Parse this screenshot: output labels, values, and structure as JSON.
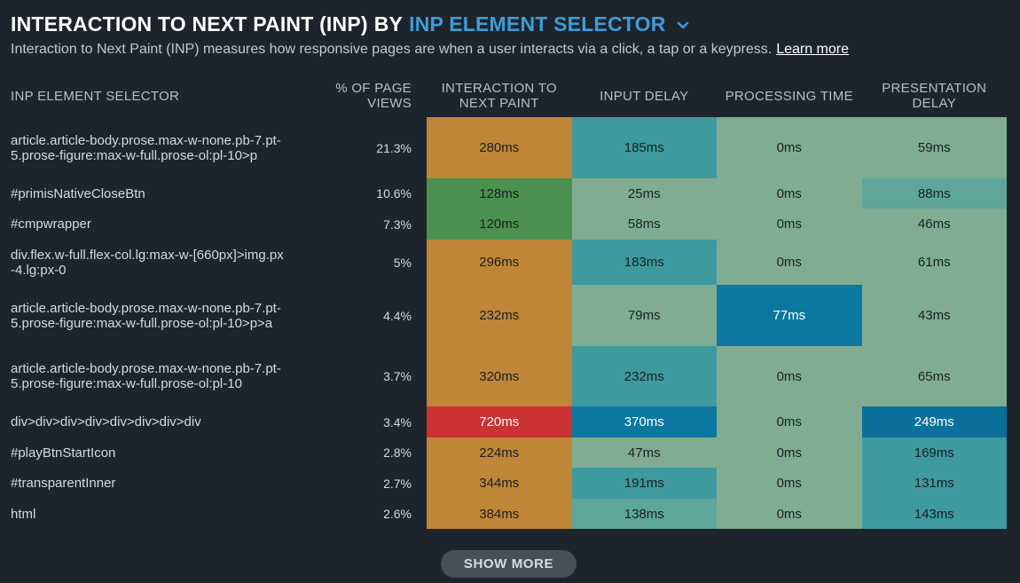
{
  "header": {
    "title_prefix": "INTERACTION TO NEXT PAINT (INP)",
    "title_by": "BY",
    "dimension_selector": "INP ELEMENT SELECTOR",
    "dropdown_icon": "chevron-down-icon",
    "description": "Interaction to Next Paint (INP) measures how responsive pages are when a user interacts via a click, a tap or a keypress.",
    "learn_more": "Learn more"
  },
  "table": {
    "columns": [
      "INP ELEMENT SELECTOR",
      "% OF PAGE VIEWS",
      "INTERACTION TO NEXT PAINT",
      "INPUT DELAY",
      "PROCESSING TIME",
      "PRESENTATION DELAY"
    ],
    "rows": [
      {
        "selector": "article.article-body.prose.max-w-none.pb-7.pt-5.prose-figure:max-w-full.prose-ol:pl-10>p",
        "pct": "21.3%",
        "inp": "280ms",
        "input_delay": "185ms",
        "processing": "0ms",
        "presentation": "59ms"
      },
      {
        "selector": "#primisNativeCloseBtn",
        "pct": "10.6%",
        "inp": "128ms",
        "input_delay": "25ms",
        "processing": "0ms",
        "presentation": "88ms"
      },
      {
        "selector": "#cmpwrapper",
        "pct": "7.3%",
        "inp": "120ms",
        "input_delay": "58ms",
        "processing": "0ms",
        "presentation": "46ms"
      },
      {
        "selector": "div.flex.w-full.flex-col.lg:max-w-[660px]>img.px-4.lg:px-0",
        "pct": "5%",
        "inp": "296ms",
        "input_delay": "183ms",
        "processing": "0ms",
        "presentation": "61ms"
      },
      {
        "selector": "article.article-body.prose.max-w-none.pb-7.pt-5.prose-figure:max-w-full.prose-ol:pl-10>p>a",
        "pct": "4.4%",
        "inp": "232ms",
        "input_delay": "79ms",
        "processing": "77ms",
        "presentation": "43ms"
      },
      {
        "selector": "article.article-body.prose.max-w-none.pb-7.pt-5.prose-figure:max-w-full.prose-ol:pl-10",
        "pct": "3.7%",
        "inp": "320ms",
        "input_delay": "232ms",
        "processing": "0ms",
        "presentation": "65ms"
      },
      {
        "selector": "div>div>div>div>div>div>div>div",
        "pct": "3.4%",
        "inp": "720ms",
        "input_delay": "370ms",
        "processing": "0ms",
        "presentation": "249ms"
      },
      {
        "selector": "#playBtnStartIcon",
        "pct": "2.8%",
        "inp": "224ms",
        "input_delay": "47ms",
        "processing": "0ms",
        "presentation": "169ms"
      },
      {
        "selector": "#transparentInner",
        "pct": "2.7%",
        "inp": "344ms",
        "input_delay": "191ms",
        "processing": "0ms",
        "presentation": "131ms"
      },
      {
        "selector": "html",
        "pct": "2.6%",
        "inp": "384ms",
        "input_delay": "138ms",
        "processing": "0ms",
        "presentation": "143ms"
      }
    ]
  },
  "colors": {
    "background": "#1d242b",
    "accent": "#3d9cd9",
    "inp_poor": "#cb3234",
    "inp_needs_improvement": "#bf8637",
    "inp_good": "#4c914f",
    "heat_low": "#80ad92",
    "heat_mid": "#5da699",
    "heat_high": "#3e9a9e",
    "heat_max": "#0c77a1"
  },
  "footer": {
    "show_more": "SHOW MORE"
  }
}
